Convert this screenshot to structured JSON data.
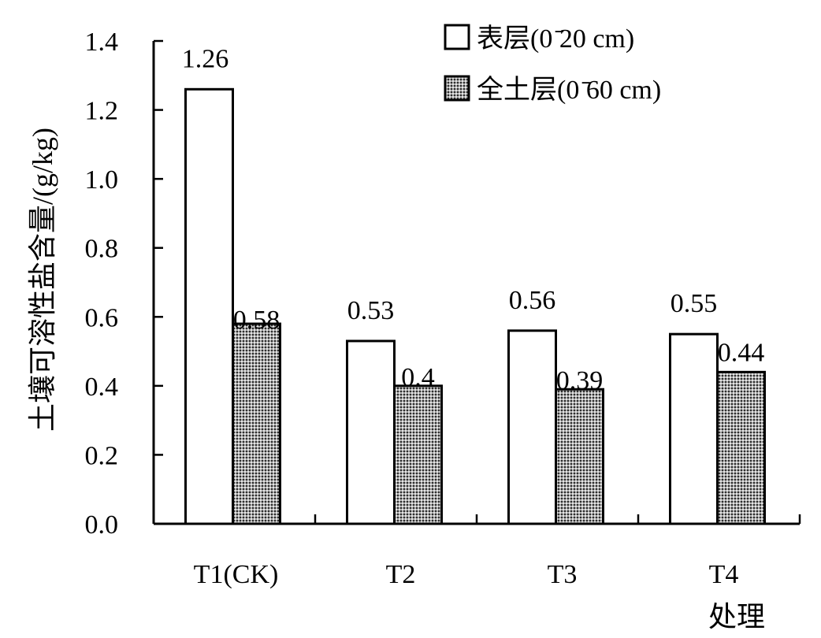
{
  "chart_data": {
    "type": "bar",
    "categories": [
      "T1(CK)",
      "T2",
      "T3",
      "T4"
    ],
    "series": [
      {
        "name": "表层(0 ̄20 cm)",
        "values": [
          1.26,
          0.53,
          0.56,
          0.55
        ],
        "labels": [
          "1.26",
          "0.53",
          "0.56",
          "0.55"
        ],
        "fill": "white"
      },
      {
        "name": "全土层(0 ̄60 cm)",
        "values": [
          0.58,
          0.4,
          0.39,
          0.44
        ],
        "labels": [
          "0.58",
          "0.4",
          "0.39",
          "0.44"
        ],
        "fill": "dotted-gray"
      }
    ],
    "title": "",
    "xlabel": "处理",
    "ylabel": "土壤可溶性盐含量/(g/kg)",
    "ylim": [
      0,
      1.4
    ],
    "yticks": [
      "0.0",
      "0.2",
      "0.4",
      "0.6",
      "0.8",
      "1.0",
      "1.2",
      "1.4"
    ],
    "grid": false,
    "legend_position": "top-right"
  }
}
